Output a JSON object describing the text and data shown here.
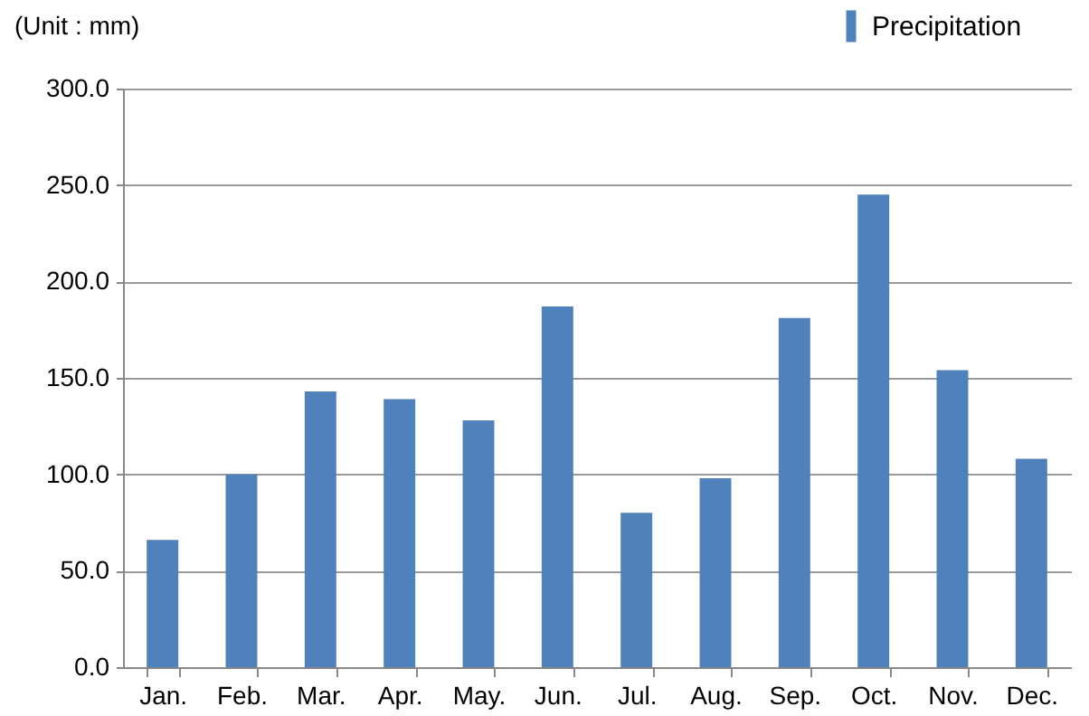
{
  "chart_data": {
    "type": "bar",
    "categories": [
      "Jan.",
      "Feb.",
      "Mar.",
      "Apr.",
      "May.",
      "Jun.",
      "Jul.",
      "Aug.",
      "Sep.",
      "Oct.",
      "Nov.",
      "Dec."
    ],
    "series": [
      {
        "name": "Precipitation",
        "color": "#4f81bd",
        "values": [
          66,
          100,
          143,
          139,
          128,
          187,
          80,
          98,
          181,
          245,
          154,
          108
        ]
      }
    ],
    "ylim": [
      0,
      300
    ],
    "yticks": [
      {
        "value": 0,
        "label": "0.0"
      },
      {
        "value": 50,
        "label": "50.0"
      },
      {
        "value": 100,
        "label": "100.0"
      },
      {
        "value": 150,
        "label": "150.0"
      },
      {
        "value": 200,
        "label": "200.0"
      },
      {
        "value": 250,
        "label": "250.0"
      },
      {
        "value": 300,
        "label": "300.0"
      }
    ],
    "grid": "y",
    "legend": "top right",
    "annotations": [
      "(Unit : mm)"
    ]
  }
}
